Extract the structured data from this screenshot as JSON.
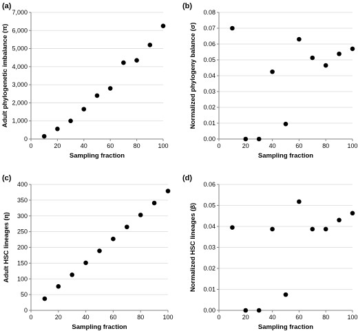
{
  "chart_data": [
    {
      "type": "scatter",
      "panel_label": "(a)",
      "xlabel": "Sampling fraction",
      "ylabel": "Adult phylogenetic imbalance (π)",
      "xlim": [
        0,
        100
      ],
      "ylim": [
        0,
        7000
      ],
      "xticks": [
        0,
        20,
        40,
        60,
        80,
        100
      ],
      "yticks": [
        0,
        1000,
        2000,
        3000,
        4000,
        5000,
        6000,
        7000
      ],
      "ytick_labels": [
        "0",
        "1,000",
        "2,000",
        "3,000",
        "4,000",
        "5,000",
        "6,000",
        "7,000"
      ],
      "grid": true,
      "x": [
        10,
        20,
        30,
        40,
        50,
        60,
        70,
        80,
        90,
        100
      ],
      "y": [
        150,
        560,
        1000,
        1650,
        2400,
        2800,
        4220,
        4350,
        5200,
        6250
      ]
    },
    {
      "type": "scatter",
      "panel_label": "(b)",
      "xlabel": "Sampling fraction",
      "ylabel": "Normalized phylogeny balance (σ)",
      "xlim": [
        0,
        100
      ],
      "ylim": [
        0,
        0.08
      ],
      "xticks": [
        0,
        20,
        40,
        60,
        80,
        100
      ],
      "yticks": [
        0,
        0.01,
        0.02,
        0.03,
        0.04,
        0.05,
        0.06,
        0.07,
        0.08
      ],
      "ytick_labels": [
        "0.00",
        "0.01",
        "0.02",
        "0.03",
        "0.04",
        "0.05",
        "0.06",
        "0.07",
        "0.08"
      ],
      "grid": true,
      "x": [
        10,
        20,
        30,
        40,
        50,
        60,
        70,
        80,
        90,
        100
      ],
      "y": [
        0.07,
        0.0,
        0.0,
        0.0425,
        0.0095,
        0.063,
        0.0513,
        0.0465,
        0.0538,
        0.057
      ]
    },
    {
      "type": "scatter",
      "panel_label": "(c)",
      "xlabel": "Sampling fraction",
      "ylabel": "Adult HSC lineages (η)",
      "xlim": [
        0,
        100
      ],
      "ylim": [
        0,
        400
      ],
      "xticks": [
        0,
        20,
        40,
        60,
        80,
        100
      ],
      "yticks": [
        0,
        50,
        100,
        150,
        200,
        250,
        300,
        350,
        400
      ],
      "ytick_labels": [
        "0",
        "50",
        "100",
        "150",
        "200",
        "250",
        "300",
        "350",
        "400"
      ],
      "grid": true,
      "x": [
        10,
        20,
        30,
        40,
        50,
        60,
        70,
        80,
        90,
        100
      ],
      "y": [
        37,
        76,
        113,
        151,
        189,
        227,
        265,
        303,
        341,
        379
      ]
    },
    {
      "type": "scatter",
      "panel_label": "(d)",
      "xlabel": "Sampling fraction",
      "ylabel": "Normalized HSC lineages (β)",
      "xlim": [
        0,
        100
      ],
      "ylim": [
        0,
        0.06
      ],
      "xticks": [
        0,
        20,
        40,
        60,
        80,
        100
      ],
      "yticks": [
        0,
        0.01,
        0.02,
        0.03,
        0.04,
        0.05,
        0.06
      ],
      "ytick_labels": [
        "0.00",
        "0.01",
        "0.02",
        "0.03",
        "0.04",
        "0.05",
        "0.06"
      ],
      "grid": true,
      "x": [
        10,
        20,
        30,
        40,
        50,
        60,
        70,
        80,
        90,
        100
      ],
      "y": [
        0.0395,
        0.0,
        0.0,
        0.0387,
        0.0075,
        0.0518,
        0.0387,
        0.0387,
        0.043,
        0.0463
      ]
    }
  ]
}
